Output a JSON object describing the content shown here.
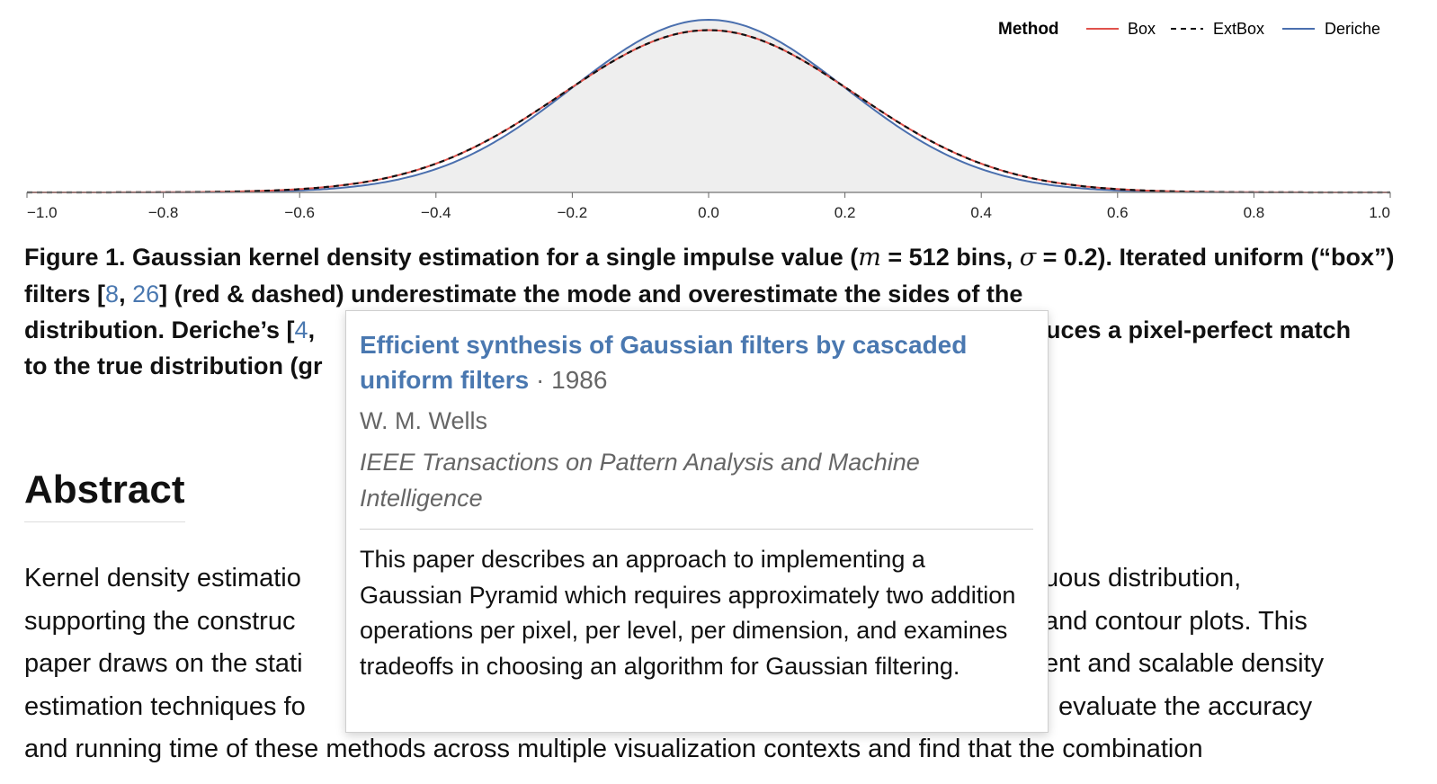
{
  "chart_data": {
    "type": "area",
    "x_range": [
      -1.0,
      1.0
    ],
    "xticks": [
      "−1.0",
      "−0.8",
      "−0.6",
      "−0.4",
      "−0.2",
      "0.0",
      "0.2",
      "0.4",
      "0.6",
      "0.8",
      "1.0"
    ],
    "sigma": 0.2,
    "bins": 512,
    "legend": {
      "title": "Method",
      "position": "top-right"
    },
    "series": [
      {
        "name": "Box",
        "color": "#e0524b",
        "style": "solid",
        "peak": 0.94,
        "sigma": 0.215
      },
      {
        "name": "ExtBox",
        "color": "#111111",
        "style": "dashed",
        "peak": 0.94,
        "sigma": 0.215
      },
      {
        "name": "Deriche",
        "color": "#4a6fae",
        "style": "solid",
        "peak": 1.0,
        "sigma": 0.2
      }
    ],
    "fill_color": "#eeeeee"
  },
  "caption": {
    "part1": "Figure 1. Gaussian kernel density estimation for a single impulse value (",
    "m_symbol": "m",
    "part2": " = 512 bins, ",
    "sigma_symbol": "σ",
    "part3": " = 0.2). Iterated uniform (“box”) filters [",
    "ref1": "8",
    "sep": ", ",
    "ref2": "26",
    "part4": "] (red & dashed) underestimate the mode and overestimate the sides of the",
    "line3_left": "distribution. Deriche’s [",
    "ref3": "4",
    "line3_comma": ",",
    "line3_right": "uces a pixel-perfect match",
    "line4_left": "to the true distribution (gr"
  },
  "abstract": {
    "heading": "Abstract",
    "lines": [
      {
        "left": "Kernel density estimatio",
        "right": "uous distribution,"
      },
      {
        "left": "supporting the construc",
        "right": "and contour plots. This"
      },
      {
        "left": "paper draws on the stati",
        "right": "ent and scalable density"
      },
      {
        "left": "estimation techniques fo",
        "right": "evaluate the accuracy"
      },
      {
        "full": "and running time of these methods across multiple visualization contexts and find that the combination"
      }
    ]
  },
  "tooltip": {
    "title": "Efficient synthesis of Gaussian filters by cascaded uniform filters",
    "year": "1986",
    "authors": "W. M. Wells",
    "venue": "IEEE Transactions on Pattern Analysis and Machine Intelligence",
    "abstract": "This paper describes an approach to implementing a Gaussian Pyramid which requires approximately two addition operations per pixel, per level, per dimension, and examines tradeoffs in choosing an algorithm for Gaussian filtering."
  }
}
